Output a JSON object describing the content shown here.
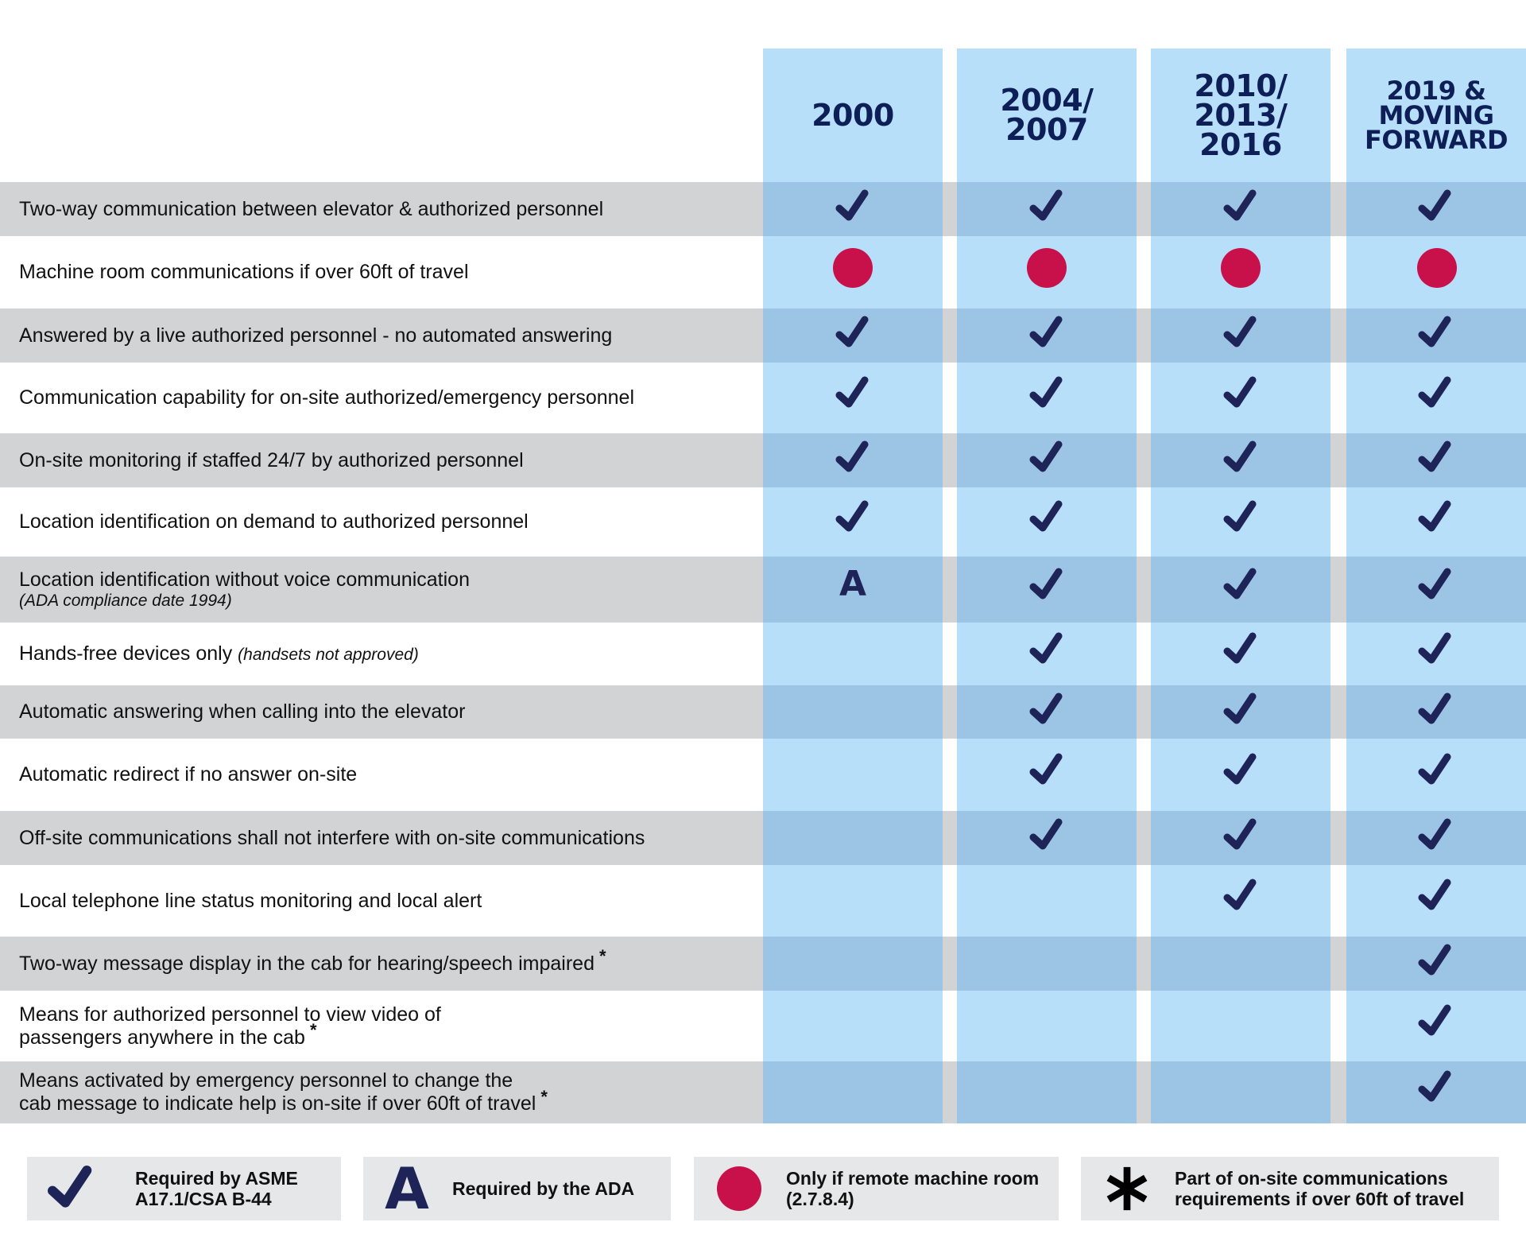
{
  "colors": {
    "column_bg": "#b8dff9",
    "column_on_gray": "#9cc4e4",
    "row_gray": "#d1d3d5",
    "legend_bg": "#e6e7e8",
    "check": "#1f2458",
    "dot": "#c8104a",
    "header_text": "#0d1f56"
  },
  "columns": [
    {
      "label": "2000"
    },
    {
      "label": "2004/\n2007"
    },
    {
      "label": "2010/\n2013/\n2016"
    },
    {
      "label": "2019 &\nMOVING\nFORWARD"
    }
  ],
  "rows": [
    {
      "label": "Two-way communication between elevator & authorized personnel",
      "cells": [
        "check",
        "check",
        "check",
        "check"
      ]
    },
    {
      "label": "Machine room communications if over 60ft of travel",
      "cells": [
        "dot",
        "dot",
        "dot",
        "dot"
      ]
    },
    {
      "label": "Answered by a live authorized personnel - no automated answering",
      "cells": [
        "check",
        "check",
        "check",
        "check"
      ]
    },
    {
      "label": "Communication capability for on-site authorized/emergency personnel",
      "cells": [
        "check",
        "check",
        "check",
        "check"
      ]
    },
    {
      "label": "On-site monitoring if staffed 24/7 by authorized personnel",
      "cells": [
        "check",
        "check",
        "check",
        "check"
      ]
    },
    {
      "label": "Location identification on demand to authorized personnel",
      "cells": [
        "check",
        "check",
        "check",
        "check"
      ]
    },
    {
      "label": "Location identification without voice communication",
      "sub": "(ADA compliance date 1994)",
      "cells": [
        "A",
        "check",
        "check",
        "check"
      ]
    },
    {
      "label": "Hands-free devices only",
      "inline_sub": "(handsets not approved)",
      "cells": [
        "",
        "check",
        "check",
        "check"
      ]
    },
    {
      "label": "Automatic answering when calling into the elevator",
      "cells": [
        "",
        "check",
        "check",
        "check"
      ]
    },
    {
      "label": "Automatic redirect if no answer on-site",
      "cells": [
        "",
        "check",
        "check",
        "check"
      ]
    },
    {
      "label": "Off-site communications shall not interfere with on-site communications",
      "cells": [
        "",
        "check",
        "check",
        "check"
      ]
    },
    {
      "label": "Local telephone line status monitoring and local alert",
      "cells": [
        "",
        "",
        "check",
        "check"
      ]
    },
    {
      "label": "Two-way message display in the cab for hearing/speech impaired",
      "asterisk": "*",
      "cells": [
        "",
        "",
        "",
        "check"
      ]
    },
    {
      "label": "Means for authorized personnel to view video of\npassengers anywhere in the cab",
      "asterisk": "*",
      "cells": [
        "",
        "",
        "",
        "check"
      ]
    },
    {
      "label": "Means activated by emergency personnel to change the\ncab message to indicate help is on-site if over 60ft of travel",
      "asterisk": "*",
      "cells": [
        "",
        "",
        "",
        "check"
      ]
    }
  ],
  "legend": [
    {
      "icon": "check-icon",
      "text": "Required by ASME\nA17.1/CSA B-44"
    },
    {
      "icon": "ada-letter-icon",
      "symbol": "A",
      "text": "Required by the ADA"
    },
    {
      "icon": "red-dot-icon",
      "text": "Only if remote machine room\n(2.7.8.4)"
    },
    {
      "icon": "asterisk-icon",
      "text": "Part of on-site communications\nrequirements if over 60ft of travel"
    }
  ]
}
